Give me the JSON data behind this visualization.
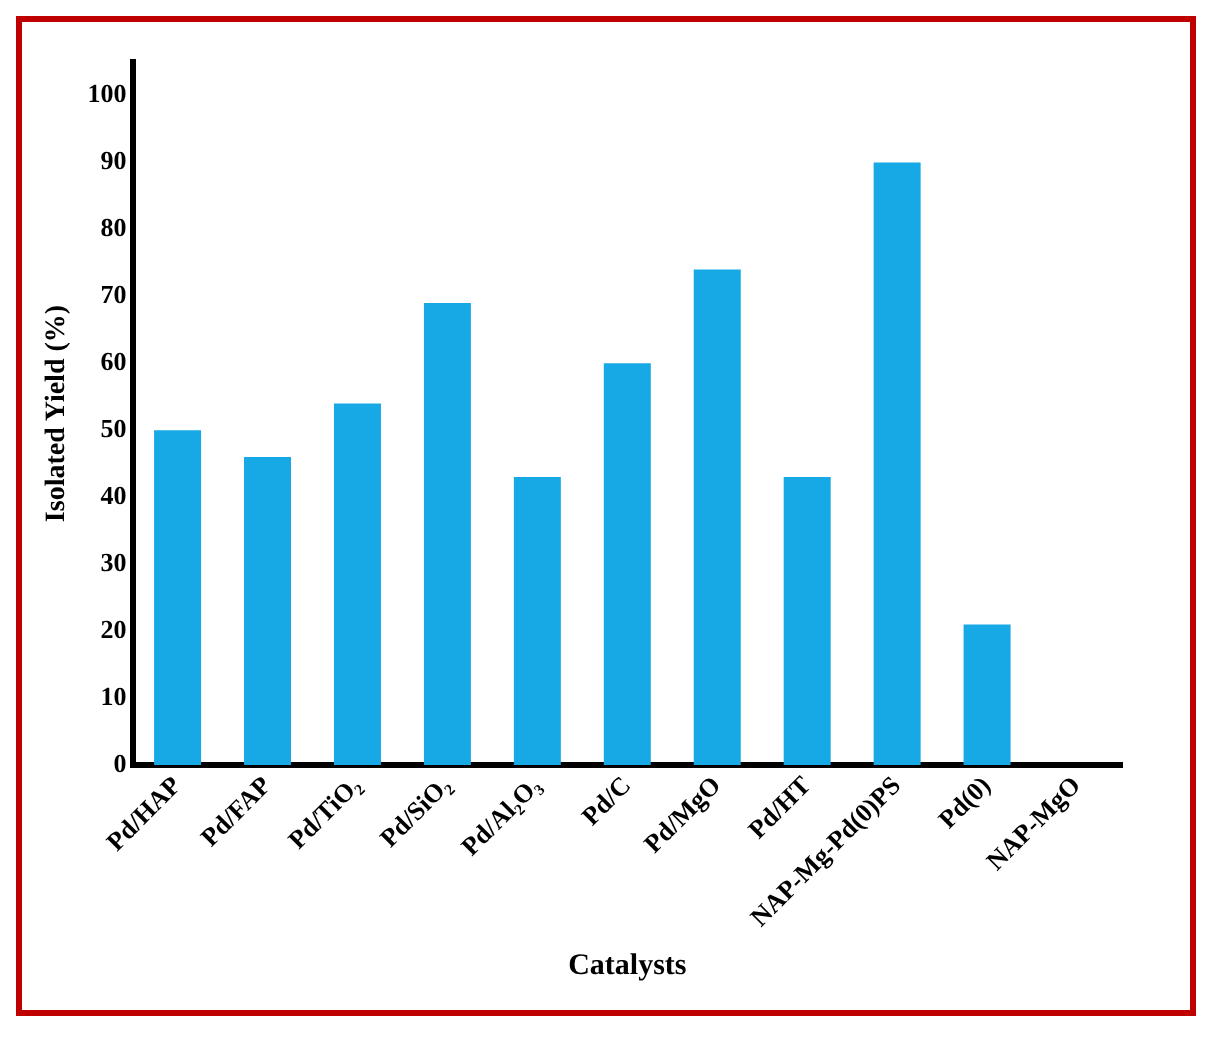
{
  "chart_data": {
    "type": "bar",
    "xlabel": "Catalysts",
    "ylabel": "Isolated Yield (%)",
    "categories": [
      "Pd/HAP",
      "Pd/FAP",
      "Pd/TiO₂",
      "Pd/SiO₂",
      "Pd/Al₂O₃",
      "Pd/C",
      "Pd/MgO",
      "Pd/HT",
      "NAP-Mg-Pd(0)PS",
      "Pd(0)",
      "NAP-MgO"
    ],
    "values": [
      50,
      46,
      54,
      69,
      43,
      60,
      74,
      43,
      90,
      21,
      0
    ],
    "color": "#17a8e6",
    "ylim": [
      0,
      105
    ],
    "yticks": [
      0,
      10,
      20,
      30,
      40,
      50,
      60,
      70,
      80,
      90,
      100
    ],
    "grid": false
  }
}
